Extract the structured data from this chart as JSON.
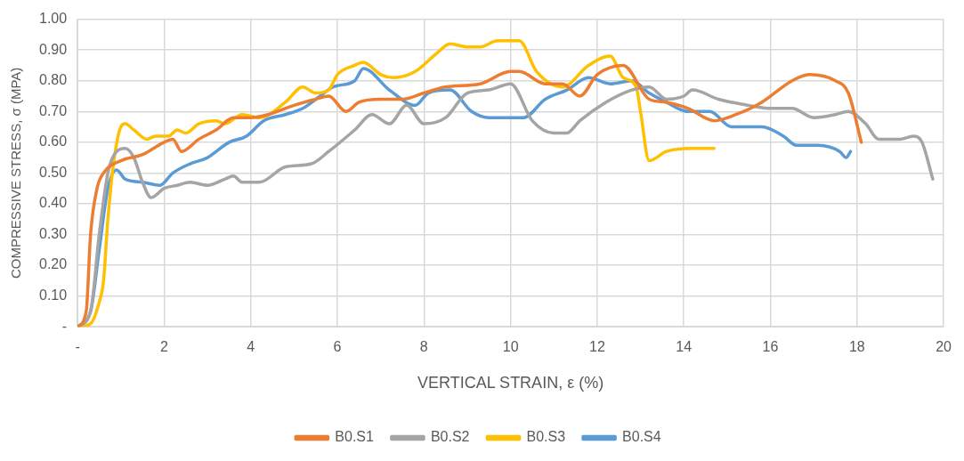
{
  "chart_data": {
    "type": "line",
    "xlabel": "VERTICAL STRAIN, ε (%)",
    "ylabel": "COMPRESSIVE STRESS, σ (MPA)",
    "xlim": [
      0,
      20
    ],
    "xticks": [
      {
        "value": 0,
        "label": "-"
      },
      2,
      4,
      6,
      8,
      10,
      12,
      14,
      16,
      18,
      20
    ],
    "ylim": [
      0,
      1
    ],
    "yticks": [
      {
        "value": 0,
        "label": "-"
      },
      {
        "value": 0.1,
        "label": "0.10"
      },
      {
        "value": 0.2,
        "label": "0.20"
      },
      {
        "value": 0.3,
        "label": "0.30"
      },
      {
        "value": 0.4,
        "label": "0.40"
      },
      {
        "value": 0.5,
        "label": "0.50"
      },
      {
        "value": 0.6,
        "label": "0.60"
      },
      {
        "value": 0.7,
        "label": "0.70"
      },
      {
        "value": 0.8,
        "label": "0.80"
      },
      {
        "value": 0.9,
        "label": "0.90"
      },
      {
        "value": 1,
        "label": "1.00"
      }
    ],
    "grid": true,
    "legend": "bottom",
    "marker": "none",
    "line_style": "solid",
    "series": [
      {
        "name": "B0.S1",
        "color": "#ed7d31",
        "x": [
          0,
          0.2,
          0.3,
          0.45,
          0.6,
          1,
          1.5,
          2,
          2.2,
          2.4,
          2.8,
          3.2,
          3.6,
          4,
          4.4,
          5,
          5.5,
          5.8,
          6.2,
          6.5,
          7,
          7.5,
          8,
          8.5,
          9.3,
          10,
          10.2,
          10.8,
          11.2,
          11.6,
          12,
          12.6,
          13.2,
          13.6,
          14.1,
          14.7,
          15.2,
          15.8,
          16.5,
          16.9,
          17.5,
          17.8,
          18.1
        ],
        "values": [
          0,
          0.05,
          0.3,
          0.45,
          0.5,
          0.54,
          0.56,
          0.6,
          0.61,
          0.57,
          0.61,
          0.64,
          0.68,
          0.68,
          0.69,
          0.72,
          0.74,
          0.75,
          0.7,
          0.73,
          0.74,
          0.74,
          0.76,
          0.78,
          0.79,
          0.83,
          0.83,
          0.79,
          0.79,
          0.75,
          0.82,
          0.85,
          0.74,
          0.73,
          0.71,
          0.67,
          0.69,
          0.73,
          0.8,
          0.82,
          0.8,
          0.76,
          0.6
        ]
      },
      {
        "name": "B0.S2",
        "color": "#a5a5a5",
        "x": [
          0,
          0.3,
          0.5,
          0.7,
          0.9,
          1.1,
          1.3,
          1.5,
          1.7,
          2,
          2.3,
          2.6,
          3,
          3.4,
          3.6,
          3.8,
          4.2,
          4.8,
          5.4,
          5.8,
          6.4,
          6.8,
          7.2,
          7.6,
          8,
          8.5,
          9,
          9.5,
          10,
          10.5,
          11,
          11.3,
          11.6,
          12.2,
          12.8,
          13.2,
          13.6,
          14,
          14.2,
          14.8,
          15.5,
          16,
          16.5,
          17,
          17.5,
          17.8,
          18.2,
          18.5,
          19,
          19.3,
          19.5,
          19.75
        ],
        "values": [
          0,
          0.05,
          0.3,
          0.5,
          0.57,
          0.58,
          0.55,
          0.47,
          0.42,
          0.45,
          0.46,
          0.47,
          0.46,
          0.48,
          0.49,
          0.47,
          0.47,
          0.52,
          0.53,
          0.57,
          0.64,
          0.69,
          0.66,
          0.72,
          0.66,
          0.68,
          0.76,
          0.77,
          0.79,
          0.67,
          0.63,
          0.63,
          0.67,
          0.73,
          0.77,
          0.78,
          0.74,
          0.75,
          0.77,
          0.74,
          0.72,
          0.71,
          0.71,
          0.68,
          0.69,
          0.7,
          0.66,
          0.61,
          0.61,
          0.62,
          0.6,
          0.48
        ]
      },
      {
        "name": "B0.S3",
        "color": "#ffc000",
        "x": [
          0,
          0.3,
          0.5,
          0.6,
          0.7,
          0.85,
          1,
          1.1,
          1.3,
          1.6,
          1.8,
          2.1,
          2.3,
          2.5,
          2.8,
          3.2,
          3.4,
          3.8,
          4.2,
          4.8,
          5.2,
          5.5,
          5.8,
          6,
          6.4,
          6.6,
          7,
          7.3,
          7.8,
          8.3,
          8.6,
          9,
          9.3,
          9.7,
          10.2,
          10.6,
          11.2,
          11.8,
          12.3,
          12.6,
          12.9,
          13,
          13.2,
          13.6,
          14.2,
          14.7
        ],
        "values": [
          0,
          0.01,
          0.08,
          0.15,
          0.35,
          0.55,
          0.65,
          0.66,
          0.64,
          0.61,
          0.62,
          0.62,
          0.64,
          0.63,
          0.66,
          0.67,
          0.66,
          0.69,
          0.68,
          0.73,
          0.78,
          0.76,
          0.77,
          0.82,
          0.85,
          0.86,
          0.82,
          0.81,
          0.83,
          0.89,
          0.92,
          0.91,
          0.91,
          0.93,
          0.93,
          0.83,
          0.78,
          0.85,
          0.88,
          0.81,
          0.78,
          0.7,
          0.54,
          0.57,
          0.58,
          0.58
        ]
      },
      {
        "name": "B0.S4",
        "color": "#5b9bd5",
        "x": [
          0,
          0.3,
          0.5,
          0.7,
          0.9,
          1.1,
          1.5,
          1.9,
          2.2,
          2.6,
          3,
          3.5,
          3.9,
          4.3,
          4.8,
          5.2,
          5.6,
          5.9,
          6.4,
          6.6,
          7.2,
          7.8,
          8.1,
          8.6,
          9.1,
          9.5,
          10.3,
          10.8,
          11.3,
          11.8,
          12.3,
          12.8,
          13.2,
          13.6,
          14.1,
          14.6,
          15.1,
          15.8,
          16.3,
          16.6,
          17.1,
          17.6,
          17.75,
          17.85
        ],
        "values": [
          0,
          0.05,
          0.25,
          0.45,
          0.51,
          0.48,
          0.47,
          0.46,
          0.5,
          0.53,
          0.55,
          0.6,
          0.62,
          0.67,
          0.69,
          0.71,
          0.75,
          0.78,
          0.8,
          0.84,
          0.77,
          0.72,
          0.76,
          0.77,
          0.7,
          0.68,
          0.68,
          0.74,
          0.77,
          0.81,
          0.79,
          0.8,
          0.76,
          0.73,
          0.7,
          0.7,
          0.65,
          0.65,
          0.62,
          0.59,
          0.59,
          0.57,
          0.55,
          0.57
        ]
      }
    ]
  }
}
